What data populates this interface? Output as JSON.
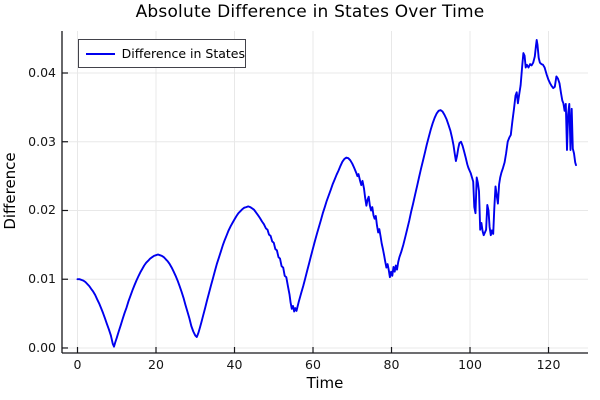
{
  "colors": {
    "line": "#0000ee",
    "grid": "#e8e8e8",
    "spine": "#16161a",
    "tick": "#16161a",
    "text": "#000000",
    "legend_border": "#42424a",
    "background": "#ffffff"
  },
  "chart_data": {
    "type": "line",
    "title": "Absolute Difference in States Over Time",
    "xlabel": "Time",
    "ylabel": "Difference",
    "legend_position": "top-left",
    "grid": true,
    "xlim": [
      -3.95,
      130.06
    ],
    "ylim": [
      -0.00073,
      0.04611
    ],
    "xticks": [
      0,
      20,
      40,
      60,
      80,
      100,
      120
    ],
    "yticks": [
      0.0,
      0.01,
      0.02,
      0.03,
      0.04
    ],
    "series": [
      {
        "name": "Difference in States",
        "color": "#0000ee",
        "points": [
          [
            0,
            0.01
          ],
          [
            0.5,
            0.01
          ],
          [
            1,
            0.0099
          ],
          [
            1.5,
            0.0098
          ],
          [
            2,
            0.0096
          ],
          [
            2.5,
            0.0093
          ],
          [
            3,
            0.009
          ],
          [
            3.5,
            0.0086
          ],
          [
            4,
            0.0082
          ],
          [
            4.5,
            0.0077
          ],
          [
            5,
            0.0071
          ],
          [
            5.5,
            0.0065
          ],
          [
            6,
            0.0058
          ],
          [
            6.5,
            0.0051
          ],
          [
            7,
            0.0043
          ],
          [
            7.5,
            0.0035
          ],
          [
            8,
            0.0027
          ],
          [
            8.5,
            0.0018
          ],
          [
            9,
            0.0006
          ],
          [
            9.3,
            0.0002
          ],
          [
            9.6,
            0.0008
          ],
          [
            10,
            0.0015
          ],
          [
            10.5,
            0.0024
          ],
          [
            11,
            0.0033
          ],
          [
            11.5,
            0.0042
          ],
          [
            12,
            0.0051
          ],
          [
            12.5,
            0.0059
          ],
          [
            13,
            0.0068
          ],
          [
            13.5,
            0.0076
          ],
          [
            14,
            0.0084
          ],
          [
            14.5,
            0.0091
          ],
          [
            15,
            0.0098
          ],
          [
            15.5,
            0.0104
          ],
          [
            16,
            0.011
          ],
          [
            16.5,
            0.0115
          ],
          [
            17,
            0.012
          ],
          [
            17.5,
            0.0124
          ],
          [
            18,
            0.0127
          ],
          [
            18.5,
            0.013
          ],
          [
            19,
            0.0132
          ],
          [
            19.5,
            0.0134
          ],
          [
            20,
            0.0135
          ],
          [
            20.5,
            0.0136
          ],
          [
            21,
            0.0135
          ],
          [
            21.5,
            0.0134
          ],
          [
            22,
            0.0132
          ],
          [
            22.5,
            0.0129
          ],
          [
            23,
            0.0126
          ],
          [
            23.5,
            0.0122
          ],
          [
            24,
            0.0117
          ],
          [
            24.5,
            0.0111
          ],
          [
            25,
            0.0105
          ],
          [
            25.5,
            0.0098
          ],
          [
            26,
            0.009
          ],
          [
            26.5,
            0.0082
          ],
          [
            27,
            0.0073
          ],
          [
            27.5,
            0.0063
          ],
          [
            28,
            0.0053
          ],
          [
            28.5,
            0.0043
          ],
          [
            29,
            0.0032
          ],
          [
            29.5,
            0.0024
          ],
          [
            30,
            0.0018
          ],
          [
            30.4,
            0.0016
          ],
          [
            30.8,
            0.0022
          ],
          [
            31.2,
            0.003
          ],
          [
            31.6,
            0.0038
          ],
          [
            32,
            0.0047
          ],
          [
            32.5,
            0.0058
          ],
          [
            33,
            0.0069
          ],
          [
            33.5,
            0.008
          ],
          [
            34,
            0.0091
          ],
          [
            34.5,
            0.0101
          ],
          [
            35,
            0.0112
          ],
          [
            35.5,
            0.0122
          ],
          [
            36,
            0.0131
          ],
          [
            36.5,
            0.014
          ],
          [
            37,
            0.0149
          ],
          [
            37.5,
            0.0157
          ],
          [
            38,
            0.0164
          ],
          [
            38.5,
            0.0171
          ],
          [
            39,
            0.0177
          ],
          [
            39.5,
            0.0182
          ],
          [
            40,
            0.0187
          ],
          [
            40.5,
            0.0192
          ],
          [
            41,
            0.0196
          ],
          [
            41.5,
            0.0199
          ],
          [
            42,
            0.0202
          ],
          [
            42.5,
            0.0204
          ],
          [
            43,
            0.0205
          ],
          [
            43.5,
            0.0206
          ],
          [
            44,
            0.0205
          ],
          [
            44.5,
            0.0203
          ],
          [
            45,
            0.0201
          ],
          [
            45.5,
            0.0197
          ],
          [
            46,
            0.0193
          ],
          [
            46.5,
            0.0189
          ],
          [
            47,
            0.0184
          ],
          [
            47.5,
            0.018
          ],
          [
            48,
            0.0174
          ],
          [
            48.4,
            0.0172
          ],
          [
            48.8,
            0.0165
          ],
          [
            49.2,
            0.0163
          ],
          [
            49.6,
            0.0155
          ],
          [
            50,
            0.0153
          ],
          [
            50.4,
            0.0144
          ],
          [
            50.8,
            0.0142
          ],
          [
            51.2,
            0.0132
          ],
          [
            51.6,
            0.013
          ],
          [
            52,
            0.0119
          ],
          [
            52.4,
            0.0117
          ],
          [
            52.8,
            0.0105
          ],
          [
            53.2,
            0.0103
          ],
          [
            53.6,
            0.009
          ],
          [
            54,
            0.0078
          ],
          [
            54.3,
            0.0066
          ],
          [
            54.6,
            0.0057
          ],
          [
            54.9,
            0.0061
          ],
          [
            55.2,
            0.0053
          ],
          [
            55.5,
            0.0058
          ],
          [
            55.8,
            0.0054
          ],
          [
            56.1,
            0.0061
          ],
          [
            56.4,
            0.0068
          ],
          [
            57,
            0.008
          ],
          [
            57.5,
            0.009
          ],
          [
            58,
            0.0101
          ],
          [
            58.5,
            0.0112
          ],
          [
            59,
            0.0123
          ],
          [
            59.5,
            0.0134
          ],
          [
            60,
            0.0145
          ],
          [
            60.5,
            0.0156
          ],
          [
            61,
            0.0166
          ],
          [
            61.5,
            0.0176
          ],
          [
            62,
            0.0186
          ],
          [
            62.5,
            0.0196
          ],
          [
            63,
            0.0205
          ],
          [
            63.5,
            0.0214
          ],
          [
            64,
            0.0222
          ],
          [
            64.5,
            0.023
          ],
          [
            65,
            0.0238
          ],
          [
            65.5,
            0.0245
          ],
          [
            66,
            0.0252
          ],
          [
            66.5,
            0.0258
          ],
          [
            67,
            0.0265
          ],
          [
            67.5,
            0.0271
          ],
          [
            68,
            0.0275
          ],
          [
            68.5,
            0.0277
          ],
          [
            69,
            0.0276
          ],
          [
            69.5,
            0.0273
          ],
          [
            70,
            0.0268
          ],
          [
            70.5,
            0.0262
          ],
          [
            71,
            0.0255
          ],
          [
            71.3,
            0.025
          ],
          [
            71.6,
            0.0253
          ],
          [
            72,
            0.0243
          ],
          [
            72.3,
            0.0237
          ],
          [
            72.6,
            0.0243
          ],
          [
            73,
            0.0232
          ],
          [
            73.3,
            0.0218
          ],
          [
            73.6,
            0.0207
          ],
          [
            73.9,
            0.0216
          ],
          [
            74.2,
            0.022
          ],
          [
            74.5,
            0.0207
          ],
          [
            74.8,
            0.02
          ],
          [
            75.1,
            0.0205
          ],
          [
            75.4,
            0.0193
          ],
          [
            75.7,
            0.0188
          ],
          [
            76,
            0.0192
          ],
          [
            76.3,
            0.0178
          ],
          [
            76.6,
            0.0168
          ],
          [
            76.9,
            0.0173
          ],
          [
            77.2,
            0.0163
          ],
          [
            77.5,
            0.0152
          ],
          [
            77.8,
            0.0144
          ],
          [
            78.1,
            0.0135
          ],
          [
            78.4,
            0.0126
          ],
          [
            78.7,
            0.0117
          ],
          [
            79,
            0.0122
          ],
          [
            79.3,
            0.0113
          ],
          [
            79.6,
            0.0103
          ],
          [
            79.9,
            0.0111
          ],
          [
            80.2,
            0.0105
          ],
          [
            80.5,
            0.0118
          ],
          [
            80.8,
            0.0111
          ],
          [
            81.1,
            0.012
          ],
          [
            81.4,
            0.0114
          ],
          [
            81.7,
            0.0125
          ],
          [
            82,
            0.0132
          ],
          [
            82.5,
            0.014
          ],
          [
            83,
            0.015
          ],
          [
            83.5,
            0.0161
          ],
          [
            84,
            0.0173
          ],
          [
            84.5,
            0.0185
          ],
          [
            85,
            0.0198
          ],
          [
            85.5,
            0.021
          ],
          [
            86,
            0.0223
          ],
          [
            86.5,
            0.0235
          ],
          [
            87,
            0.0248
          ],
          [
            87.5,
            0.026
          ],
          [
            88,
            0.0272
          ],
          [
            88.5,
            0.0284
          ],
          [
            89,
            0.0296
          ],
          [
            89.5,
            0.0307
          ],
          [
            90,
            0.0318
          ],
          [
            90.5,
            0.0327
          ],
          [
            91,
            0.0335
          ],
          [
            91.5,
            0.0341
          ],
          [
            92,
            0.0345
          ],
          [
            92.5,
            0.0346
          ],
          [
            93,
            0.0344
          ],
          [
            93.5,
            0.0339
          ],
          [
            94,
            0.0333
          ],
          [
            94.5,
            0.0325
          ],
          [
            95,
            0.0316
          ],
          [
            95.4,
            0.0306
          ],
          [
            95.8,
            0.0295
          ],
          [
            96.1,
            0.0283
          ],
          [
            96.4,
            0.0272
          ],
          [
            96.7,
            0.028
          ],
          [
            97,
            0.029
          ],
          [
            97.3,
            0.0298
          ],
          [
            97.7,
            0.03
          ],
          [
            98.1,
            0.0294
          ],
          [
            98.5,
            0.0286
          ],
          [
            98.9,
            0.0277
          ],
          [
            99.3,
            0.0267
          ],
          [
            99.6,
            0.0262
          ],
          [
            99.9,
            0.0258
          ],
          [
            100.2,
            0.0254
          ],
          [
            100.5,
            0.0248
          ],
          [
            100.8,
            0.0242
          ],
          [
            101.1,
            0.0205
          ],
          [
            101.4,
            0.0196
          ],
          [
            101.7,
            0.0248
          ],
          [
            102,
            0.024
          ],
          [
            102.3,
            0.0228
          ],
          [
            102.6,
            0.0172
          ],
          [
            102.9,
            0.0182
          ],
          [
            103.2,
            0.017
          ],
          [
            103.5,
            0.0164
          ],
          [
            103.8,
            0.0168
          ],
          [
            104.1,
            0.0172
          ],
          [
            104.4,
            0.0208
          ],
          [
            104.7,
            0.02
          ],
          [
            105,
            0.0176
          ],
          [
            105.3,
            0.0164
          ],
          [
            105.6,
            0.0171
          ],
          [
            105.9,
            0.0166
          ],
          [
            106.2,
            0.0203
          ],
          [
            106.5,
            0.0235
          ],
          [
            106.8,
            0.0222
          ],
          [
            107.1,
            0.021
          ],
          [
            107.4,
            0.0238
          ],
          [
            107.7,
            0.0248
          ],
          [
            108,
            0.0255
          ],
          [
            108.4,
            0.0262
          ],
          [
            108.8,
            0.027
          ],
          [
            109.2,
            0.0283
          ],
          [
            109.6,
            0.03
          ],
          [
            110,
            0.0306
          ],
          [
            110.4,
            0.031
          ],
          [
            110.8,
            0.033
          ],
          [
            111.2,
            0.0348
          ],
          [
            111.6,
            0.0367
          ],
          [
            111.9,
            0.0372
          ],
          [
            112.2,
            0.0356
          ],
          [
            112.5,
            0.0368
          ],
          [
            112.9,
            0.0382
          ],
          [
            113.3,
            0.041
          ],
          [
            113.6,
            0.0429
          ],
          [
            113.9,
            0.0425
          ],
          [
            114.2,
            0.0408
          ],
          [
            114.5,
            0.0412
          ],
          [
            114.9,
            0.0408
          ],
          [
            115.3,
            0.0413
          ],
          [
            115.7,
            0.0411
          ],
          [
            116.1,
            0.0415
          ],
          [
            116.5,
            0.0424
          ],
          [
            116.8,
            0.044
          ],
          [
            117,
            0.0448
          ],
          [
            117.2,
            0.0441
          ],
          [
            117.5,
            0.0422
          ],
          [
            117.8,
            0.0415
          ],
          [
            118.2,
            0.0413
          ],
          [
            118.6,
            0.0412
          ],
          [
            119,
            0.0408
          ],
          [
            119.5,
            0.0398
          ],
          [
            120,
            0.039
          ],
          [
            120.4,
            0.0385
          ],
          [
            120.8,
            0.0381
          ],
          [
            121.2,
            0.0378
          ],
          [
            121.6,
            0.038
          ],
          [
            122,
            0.0395
          ],
          [
            122.4,
            0.0392
          ],
          [
            122.8,
            0.0385
          ],
          [
            123.2,
            0.037
          ],
          [
            123.5,
            0.036
          ],
          [
            123.8,
            0.0356
          ],
          [
            124.1,
            0.0345
          ],
          [
            124.4,
            0.0355
          ],
          [
            124.7,
            0.0288
          ],
          [
            125,
            0.034
          ],
          [
            125.3,
            0.0355
          ],
          [
            125.6,
            0.0288
          ],
          [
            125.9,
            0.0348
          ],
          [
            126.2,
            0.029
          ],
          [
            126.5,
            0.0283
          ],
          [
            126.8,
            0.027
          ],
          [
            127,
            0.0266
          ]
        ]
      }
    ]
  }
}
